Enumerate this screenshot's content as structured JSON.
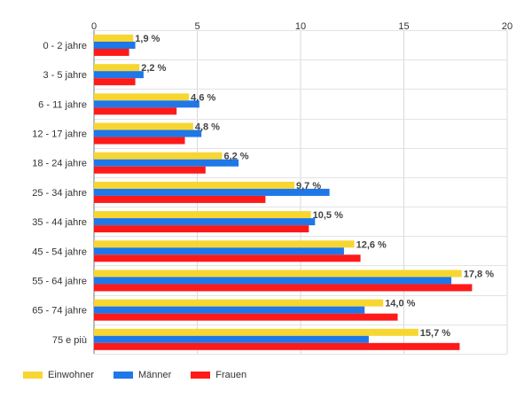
{
  "chart_data": {
    "type": "bar",
    "orientation": "horizontal",
    "categories": [
      "0 - 2 jahre",
      "3 - 5 jahre",
      "6 - 11 jahre",
      "12 - 17 jahre",
      "18 - 24 jahre",
      "25 - 34 jahre",
      "35 - 44 jahre",
      "45 - 54 jahre",
      "55 - 64 jahre",
      "65 - 74 jahre",
      "75 e più"
    ],
    "series": [
      {
        "name": "Einwohner",
        "color": "#f7d631",
        "values": [
          1.9,
          2.2,
          4.6,
          4.8,
          6.2,
          9.7,
          10.5,
          12.6,
          17.8,
          14.0,
          15.7
        ]
      },
      {
        "name": "Männer",
        "color": "#1f77e8",
        "values": [
          2.0,
          2.4,
          5.1,
          5.2,
          7.0,
          11.4,
          10.7,
          12.1,
          17.3,
          13.1,
          13.3
        ]
      },
      {
        "name": "Frauen",
        "color": "#ff1a1a",
        "values": [
          1.7,
          2.0,
          4.0,
          4.4,
          5.4,
          8.3,
          10.4,
          12.9,
          18.3,
          14.7,
          17.7
        ]
      }
    ],
    "data_labels": [
      "1,9 %",
      "2,2 %",
      "4,6 %",
      "4,8 %",
      "6,2 %",
      "9,7 %",
      "10,5 %",
      "12,6 %",
      "17,8 %",
      "14,0 %",
      "15,7 %"
    ],
    "xlim": [
      0,
      20
    ],
    "xticks": [
      "0",
      "5",
      "10",
      "15",
      "20"
    ],
    "grid": true,
    "legend_position": "bottom-left"
  }
}
